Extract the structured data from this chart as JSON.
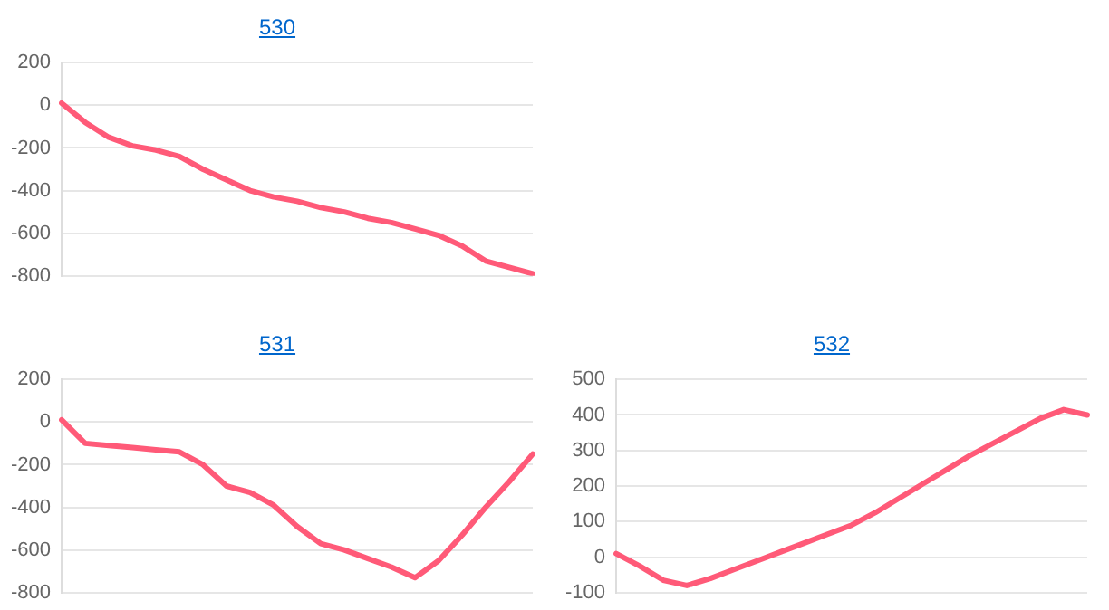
{
  "chart_data": [
    {
      "type": "line",
      "title": "530",
      "categories": [
        null,
        null,
        null,
        null,
        null,
        null,
        null,
        null,
        null,
        null,
        null,
        null,
        null,
        null,
        null,
        null,
        null,
        null,
        null,
        null,
        null
      ],
      "series": [
        {
          "color": "#ff5a78",
          "values": [
            10,
            -80,
            -150,
            -190,
            -210,
            -240,
            -300,
            -350,
            -400,
            -430,
            -450,
            -480,
            -500,
            -530,
            -550,
            -580,
            -610,
            -660,
            -730,
            -760,
            -790
          ]
        }
      ],
      "ylim": [
        -800,
        200
      ],
      "yticks": [
        -800,
        -600,
        -400,
        -200,
        0,
        200
      ],
      "grid": "y",
      "tick_labels": "y",
      "marker": "none"
    },
    {
      "type": "line",
      "title": "531",
      "categories": [
        null,
        null,
        null,
        null,
        null,
        null,
        null,
        null,
        null,
        null,
        null,
        null,
        null,
        null,
        null,
        null,
        null,
        null,
        null,
        null,
        null
      ],
      "series": [
        {
          "color": "#ff5a78",
          "values": [
            10,
            -100,
            -110,
            -120,
            -130,
            -140,
            -200,
            -300,
            -330,
            -390,
            -490,
            -570,
            -600,
            -640,
            -680,
            -730,
            -650,
            -530,
            -400,
            -280,
            -150
          ]
        }
      ],
      "ylim": [
        -800,
        200
      ],
      "yticks": [
        -800,
        -600,
        -400,
        -200,
        0,
        200
      ],
      "grid": "y",
      "tick_labels": "y",
      "marker": "none"
    },
    {
      "type": "line",
      "title": "532",
      "categories": [
        null,
        null,
        null,
        null,
        null,
        null,
        null,
        null,
        null,
        null,
        null,
        null,
        null,
        null,
        null,
        null,
        null,
        null,
        null,
        null,
        null
      ],
      "series": [
        {
          "color": "#ff5a78",
          "values": [
            10,
            -25,
            -65,
            -80,
            -60,
            -35,
            -10,
            15,
            40,
            65,
            90,
            125,
            165,
            205,
            245,
            285,
            320,
            355,
            390,
            415,
            400
          ]
        }
      ],
      "ylim": [
        -100,
        500
      ],
      "yticks": [
        -100,
        0,
        100,
        200,
        300,
        400,
        500
      ],
      "grid": "y",
      "tick_labels": "y",
      "marker": "none"
    }
  ]
}
